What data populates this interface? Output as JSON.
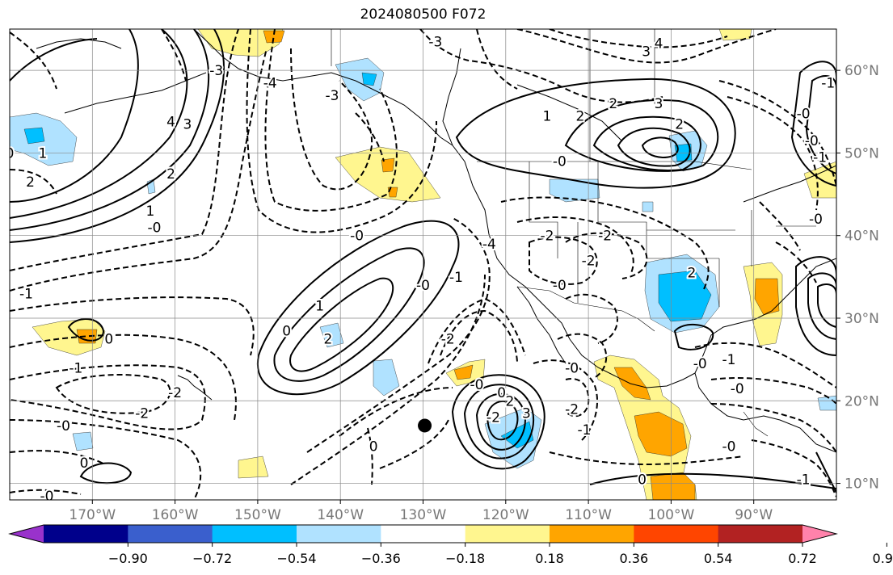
{
  "title": "2024080500 F072",
  "map": {
    "projection": "plate-carree",
    "lon_range": [
      -180,
      -80
    ],
    "lat_range": [
      8,
      65
    ],
    "lon_ticks": [
      {
        "lon": -170,
        "label": "170°W"
      },
      {
        "lon": -160,
        "label": "160°W"
      },
      {
        "lon": -150,
        "label": "150°W"
      },
      {
        "lon": -140,
        "label": "140°W"
      },
      {
        "lon": -130,
        "label": "130°W"
      },
      {
        "lon": -120,
        "label": "120°W"
      },
      {
        "lon": -110,
        "label": "110°W"
      },
      {
        "lon": -100,
        "label": "100°W"
      },
      {
        "lon": -90,
        "label": "90°W"
      }
    ],
    "lat_ticks": [
      {
        "lat": 60,
        "label": "60°N"
      },
      {
        "lat": 50,
        "label": "50°N"
      },
      {
        "lat": 40,
        "label": "40°N"
      },
      {
        "lat": 30,
        "label": "30°N"
      },
      {
        "lat": 20,
        "label": "20°N"
      },
      {
        "lat": 10,
        "label": "10°N"
      }
    ],
    "gridlines": true,
    "storm_marker": {
      "lon": -129.8,
      "lat": 17.0
    },
    "contour_labels": [
      {
        "text": "-3",
        "lon": -155,
        "lat": 60
      },
      {
        "text": "-3",
        "lon": -128.5,
        "lat": 63.5
      },
      {
        "text": "-4",
        "lon": -148.5,
        "lat": 58.5
      },
      {
        "text": "-3",
        "lon": -141,
        "lat": 57
      },
      {
        "text": "3",
        "lon": -103,
        "lat": 62.3
      },
      {
        "text": "4",
        "lon": -101.5,
        "lat": 63.3
      },
      {
        "text": "4",
        "lon": -160.5,
        "lat": 53.8
      },
      {
        "text": "3",
        "lon": -158.5,
        "lat": 53.5
      },
      {
        "text": "2",
        "lon": -160.5,
        "lat": 47.5
      },
      {
        "text": "1",
        "lon": -176,
        "lat": 50
      },
      {
        "text": "2",
        "lon": -177.5,
        "lat": 46.5
      },
      {
        "text": "1",
        "lon": -163,
        "lat": 43
      },
      {
        "text": "0",
        "lon": -180,
        "lat": 50
      },
      {
        "text": "-0",
        "lon": -162.5,
        "lat": 41
      },
      {
        "text": "-1",
        "lon": -178,
        "lat": 33
      },
      {
        "text": "0",
        "lon": -168,
        "lat": 27.5
      },
      {
        "text": "-1",
        "lon": -172,
        "lat": 24
      },
      {
        "text": "-2",
        "lon": -160,
        "lat": 21
      },
      {
        "text": "-2",
        "lon": -164,
        "lat": 18.5
      },
      {
        "text": "-0",
        "lon": -173.5,
        "lat": 17
      },
      {
        "text": "0",
        "lon": -171,
        "lat": 12.5
      },
      {
        "text": "-0",
        "lon": -175.5,
        "lat": 8.5
      },
      {
        "text": "-0",
        "lon": -138,
        "lat": 40
      },
      {
        "text": "0",
        "lon": -146.5,
        "lat": 28.5
      },
      {
        "text": "1",
        "lon": -142.5,
        "lat": 31.5
      },
      {
        "text": "2",
        "lon": -141.5,
        "lat": 27.5
      },
      {
        "text": "-0",
        "lon": -130,
        "lat": 34
      },
      {
        "text": "-1",
        "lon": -126,
        "lat": 35
      },
      {
        "text": "-2",
        "lon": -127,
        "lat": 27.5
      },
      {
        "text": "-0",
        "lon": -123.5,
        "lat": 22
      },
      {
        "text": "0",
        "lon": -120.5,
        "lat": 21
      },
      {
        "text": "2",
        "lon": -119.5,
        "lat": 20
      },
      {
        "text": "3",
        "lon": -117.5,
        "lat": 18.5
      },
      {
        "text": "-2",
        "lon": -121.5,
        "lat": 18
      },
      {
        "text": "-1",
        "lon": -110.5,
        "lat": 16.5
      },
      {
        "text": "-2",
        "lon": -112,
        "lat": 19
      },
      {
        "text": "-0",
        "lon": -112,
        "lat": 24
      },
      {
        "text": "-0",
        "lon": -113.5,
        "lat": 34
      },
      {
        "text": "-4",
        "lon": -122,
        "lat": 39
      },
      {
        "text": "-2",
        "lon": -115,
        "lat": 40
      },
      {
        "text": "-2",
        "lon": -108,
        "lat": 40
      },
      {
        "text": "-2",
        "lon": -110,
        "lat": 37
      },
      {
        "text": "2",
        "lon": -97.5,
        "lat": 35.5
      },
      {
        "text": "-0",
        "lon": -113.5,
        "lat": 49
      },
      {
        "text": "1",
        "lon": -115,
        "lat": 54.5
      },
      {
        "text": "2",
        "lon": -111,
        "lat": 54.5
      },
      {
        "text": "2",
        "lon": -107,
        "lat": 56
      },
      {
        "text": "3",
        "lon": -101.5,
        "lat": 56
      },
      {
        "text": "2",
        "lon": -99,
        "lat": 53.5
      },
      {
        "text": "-0",
        "lon": -84,
        "lat": 54.8
      },
      {
        "text": "-0",
        "lon": -83,
        "lat": 51.5
      },
      {
        "text": "-1",
        "lon": -81,
        "lat": 58.5
      },
      {
        "text": "-1",
        "lon": -82,
        "lat": 49.5
      },
      {
        "text": "-0",
        "lon": -96.5,
        "lat": 24.5
      },
      {
        "text": "-1",
        "lon": -93,
        "lat": 25
      },
      {
        "text": "-0",
        "lon": -92,
        "lat": 21.5
      },
      {
        "text": "-0",
        "lon": -93,
        "lat": 14.5
      },
      {
        "text": "0",
        "lon": -103.5,
        "lat": 10.5
      },
      {
        "text": "-1",
        "lon": -84,
        "lat": 10.5
      },
      {
        "text": "-0",
        "lon": -82.5,
        "lat": 42
      },
      {
        "text": "0",
        "lon": -136,
        "lat": 14.5
      }
    ]
  },
  "colorbar": {
    "colors": [
      "#9932cc",
      "#00008b",
      "#3a5fcd",
      "#00bfff",
      "#b0e2ff",
      "#ffffff",
      "#fff68f",
      "#ffa500",
      "#ff4500",
      "#b22222",
      "#ff82ab"
    ],
    "tick_labels": [
      "−0.90",
      "−0.72",
      "−0.54",
      "−0.36",
      "−0.18",
      "0.18",
      "0.36",
      "0.54",
      "0.72",
      "0.90"
    ]
  }
}
